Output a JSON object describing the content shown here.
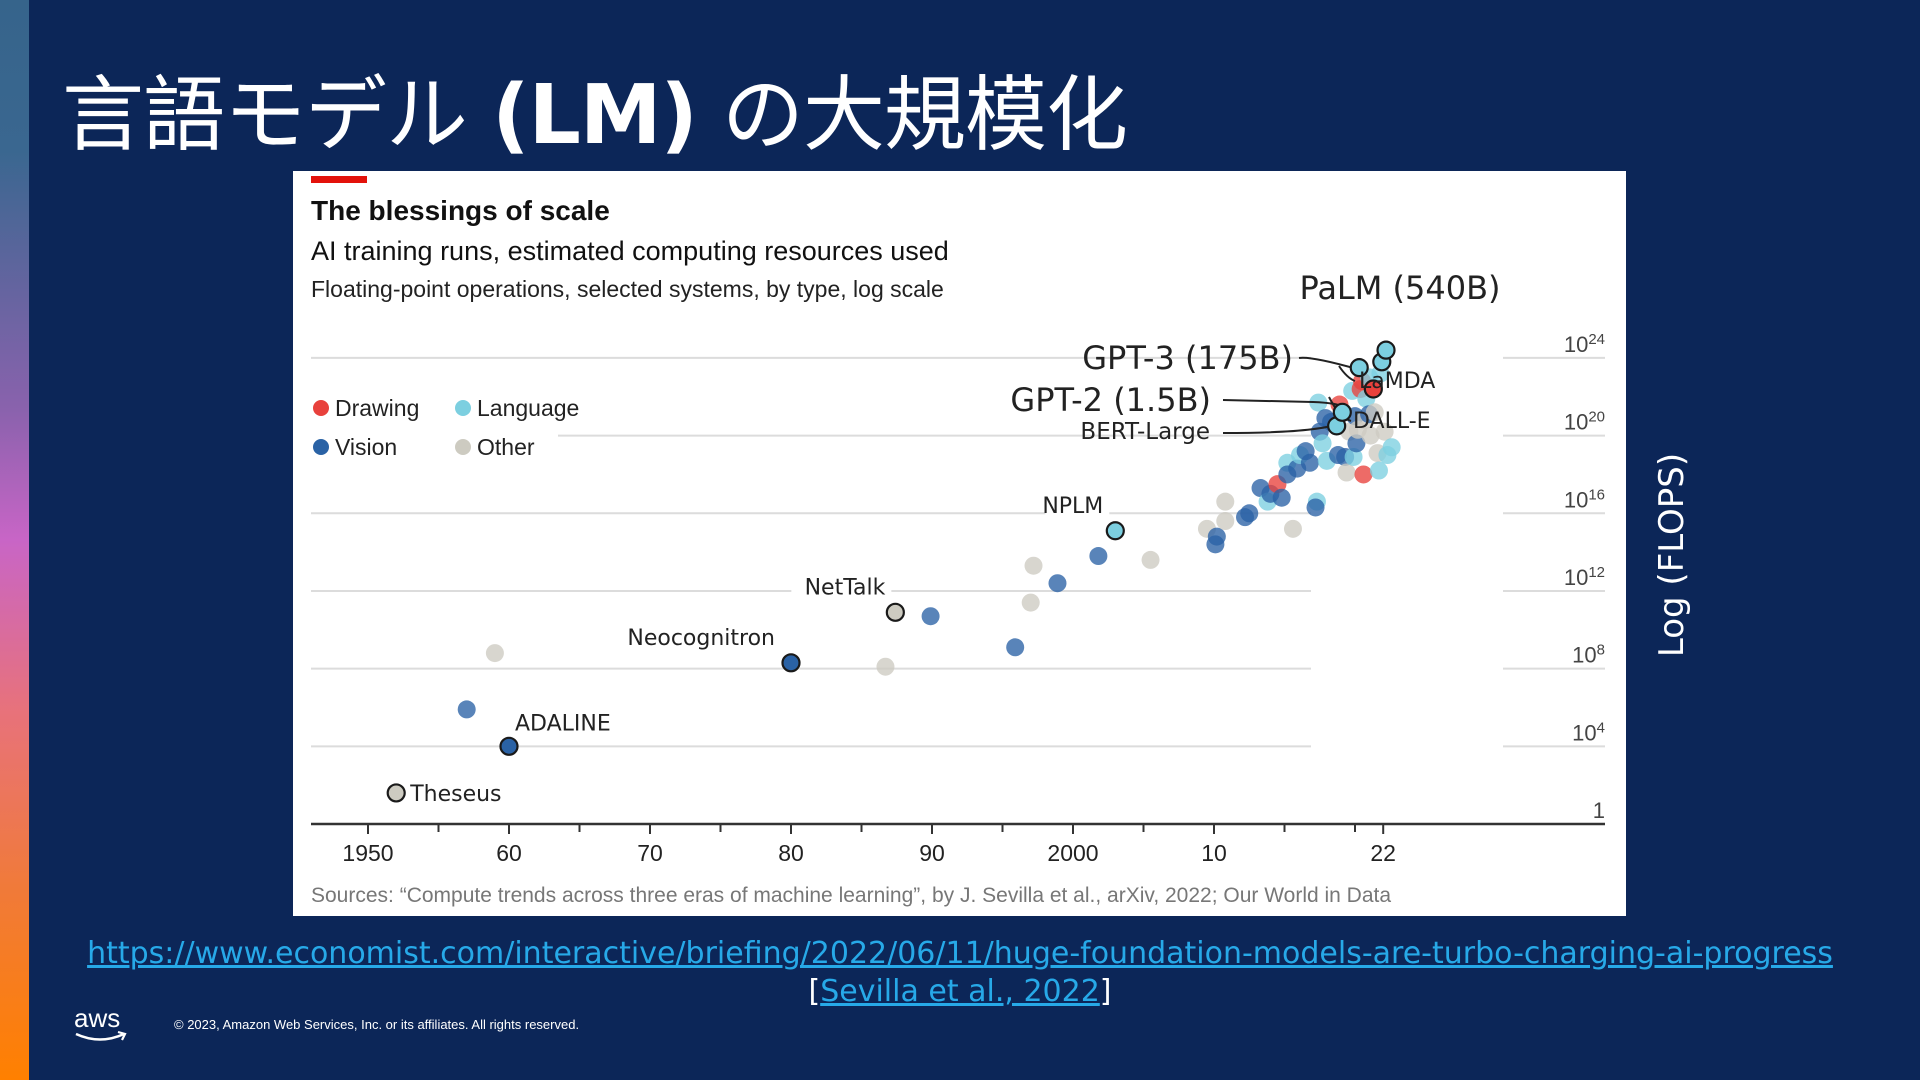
{
  "slide": {
    "title_prefix": "言語モデル",
    "title_bold": "(LM)",
    "title_suffix": "の大規模化",
    "y_axis_side_label": "Log (FLOPS)",
    "link_url_text": "https://www.economist.com/interactive/briefing/2022/06/11/huge-foundation-models-are-turbo-charging-ai-progress",
    "citation_open": "[",
    "citation_text": "Sevilla et al., 2022",
    "citation_close": "]",
    "copyright": "© 2023, Amazon Web Services, Inc. or its affiliates. All rights reserved.",
    "logo": "aws-logo",
    "colors": {
      "background": "#0c2658",
      "link": "#27a9e8",
      "accent_top": "#36648b",
      "accent_mid": "#c865c6",
      "accent_bottom": "#ff8000"
    }
  },
  "chart_data": {
    "type": "scatter",
    "title": "The blessings of scale",
    "subtitle": "AI training runs, estimated computing resources used",
    "description": "Floating-point operations, selected systems, by type, log scale",
    "source": "Sources: “Compute trends across three eras of machine learning”, by J. Sevilla et al., arXiv, 2022; Our World in Data",
    "xlabel": "",
    "ylabel": "Log (FLOPS)",
    "x_range": [
      1947,
      2035
    ],
    "y_range_log10": [
      0,
      25
    ],
    "x_ticks": [
      {
        "value": 1950,
        "label": "1950"
      },
      {
        "value": 1960,
        "label": "60"
      },
      {
        "value": 1970,
        "label": "70"
      },
      {
        "value": 1980,
        "label": "80"
      },
      {
        "value": 1990,
        "label": "90"
      },
      {
        "value": 2000,
        "label": "2000"
      },
      {
        "value": 2010,
        "label": "10"
      },
      {
        "value": 2022,
        "label": "22"
      }
    ],
    "x_minor_ticks": [
      1955,
      1965,
      1975,
      1985,
      1995,
      2005,
      2015,
      2020
    ],
    "y_ticks": [
      {
        "value": 0,
        "base": "1",
        "exp": ""
      },
      {
        "value": 4,
        "base": "10",
        "exp": "4"
      },
      {
        "value": 8,
        "base": "10",
        "exp": "8"
      },
      {
        "value": 12,
        "base": "10",
        "exp": "12"
      },
      {
        "value": 16,
        "base": "10",
        "exp": "16"
      },
      {
        "value": 20,
        "base": "10",
        "exp": "20"
      },
      {
        "value": 24,
        "base": "10",
        "exp": "24"
      }
    ],
    "grid": true,
    "legend_position": "top-left",
    "series": [
      {
        "name": "Drawing",
        "color": "#e8413c"
      },
      {
        "name": "Language",
        "color": "#7ccfe0"
      },
      {
        "name": "Vision",
        "color": "#2a62a5"
      },
      {
        "name": "Other",
        "color": "#cdcbc1"
      }
    ],
    "points": [
      {
        "year": 1952.0,
        "log10_flops": 1.6,
        "type": "Other",
        "label": "Theseus",
        "highlight": true
      },
      {
        "year": 1957.0,
        "log10_flops": 5.9,
        "type": "Vision"
      },
      {
        "year": 1959.0,
        "log10_flops": 8.8,
        "type": "Other"
      },
      {
        "year": 1960.0,
        "log10_flops": 4.0,
        "type": "Vision",
        "label": "ADALINE",
        "highlight": true
      },
      {
        "year": 1980.0,
        "log10_flops": 8.3,
        "type": "Vision",
        "label": "Neocognitron",
        "highlight": true
      },
      {
        "year": 1986.7,
        "log10_flops": 8.1,
        "type": "Other"
      },
      {
        "year": 1987.4,
        "log10_flops": 10.9,
        "type": "Other",
        "label": "NetTalk",
        "highlight": true
      },
      {
        "year": 1989.9,
        "log10_flops": 10.7,
        "type": "Vision"
      },
      {
        "year": 1995.9,
        "log10_flops": 9.1,
        "type": "Vision"
      },
      {
        "year": 1997.0,
        "log10_flops": 11.4,
        "type": "Other"
      },
      {
        "year": 1997.2,
        "log10_flops": 13.3,
        "type": "Other"
      },
      {
        "year": 1998.9,
        "log10_flops": 12.4,
        "type": "Vision"
      },
      {
        "year": 2001.8,
        "log10_flops": 13.8,
        "type": "Vision"
      },
      {
        "year": 2003.0,
        "log10_flops": 15.1,
        "type": "Language",
        "label": "NPLM",
        "highlight": true
      },
      {
        "year": 2005.5,
        "log10_flops": 13.6,
        "type": "Other"
      },
      {
        "year": 2009.5,
        "log10_flops": 15.2,
        "type": "Other"
      },
      {
        "year": 2010.1,
        "log10_flops": 14.4,
        "type": "Vision"
      },
      {
        "year": 2010.2,
        "log10_flops": 14.8,
        "type": "Vision"
      },
      {
        "year": 2010.8,
        "log10_flops": 15.6,
        "type": "Other"
      },
      {
        "year": 2010.8,
        "log10_flops": 16.6,
        "type": "Other"
      },
      {
        "year": 2012.2,
        "log10_flops": 15.8,
        "type": "Vision"
      },
      {
        "year": 2012.5,
        "log10_flops": 16.0,
        "type": "Vision"
      },
      {
        "year": 2013.3,
        "log10_flops": 17.3,
        "type": "Vision"
      },
      {
        "year": 2013.8,
        "log10_flops": 16.6,
        "type": "Language"
      },
      {
        "year": 2014.0,
        "log10_flops": 17.0,
        "type": "Vision"
      },
      {
        "year": 2014.5,
        "log10_flops": 17.5,
        "type": "Drawing"
      },
      {
        "year": 2014.8,
        "log10_flops": 16.8,
        "type": "Vision"
      },
      {
        "year": 2015.6,
        "log10_flops": 15.2,
        "type": "Other"
      },
      {
        "year": 2015.2,
        "log10_flops": 18.6,
        "type": "Language"
      },
      {
        "year": 2015.2,
        "log10_flops": 18.0,
        "type": "Vision"
      },
      {
        "year": 2015.9,
        "log10_flops": 18.3,
        "type": "Vision"
      },
      {
        "year": 2016.1,
        "log10_flops": 19.0,
        "type": "Language"
      },
      {
        "year": 2016.5,
        "log10_flops": 19.2,
        "type": "Vision"
      },
      {
        "year": 2016.8,
        "log10_flops": 18.6,
        "type": "Vision"
      },
      {
        "year": 2017.3,
        "log10_flops": 16.6,
        "type": "Language"
      },
      {
        "year": 2017.2,
        "log10_flops": 16.3,
        "type": "Vision"
      },
      {
        "year": 2017.4,
        "log10_flops": 21.7,
        "type": "Language"
      },
      {
        "year": 2017.5,
        "log10_flops": 20.2,
        "type": "Vision"
      },
      {
        "year": 2017.7,
        "log10_flops": 19.6,
        "type": "Language"
      },
      {
        "year": 2017.9,
        "log10_flops": 20.9,
        "type": "Vision"
      },
      {
        "year": 2018.0,
        "log10_flops": 18.7,
        "type": "Language"
      },
      {
        "year": 2018.3,
        "log10_flops": 20.7,
        "type": "Vision"
      },
      {
        "year": 2018.7,
        "log10_flops": 20.5,
        "type": "Language",
        "label": "BERT-Large",
        "highlight": true
      },
      {
        "year": 2018.8,
        "log10_flops": 19.0,
        "type": "Vision"
      },
      {
        "year": 2018.9,
        "log10_flops": 21.6,
        "type": "Drawing"
      },
      {
        "year": 2019.1,
        "log10_flops": 21.2,
        "type": "Language",
        "label": "GPT-2 (1.5B)",
        "highlight": true
      },
      {
        "year": 2019.3,
        "log10_flops": 18.9,
        "type": "Vision"
      },
      {
        "year": 2019.4,
        "log10_flops": 18.1,
        "type": "Other"
      },
      {
        "year": 2019.6,
        "log10_flops": 20.2,
        "type": "Other"
      },
      {
        "year": 2019.8,
        "log10_flops": 22.3,
        "type": "Language"
      },
      {
        "year": 2019.9,
        "log10_flops": 18.9,
        "type": "Language"
      },
      {
        "year": 2020.0,
        "log10_flops": 21.0,
        "type": "Vision"
      },
      {
        "year": 2020.1,
        "log10_flops": 19.6,
        "type": "Vision"
      },
      {
        "year": 2020.2,
        "log10_flops": 20.3,
        "type": "Other"
      },
      {
        "year": 2020.3,
        "log10_flops": 23.5,
        "type": "Language",
        "label": "GPT-3 (175B)",
        "highlight": true
      },
      {
        "year": 2020.4,
        "log10_flops": 22.4,
        "type": "Drawing"
      },
      {
        "year": 2020.5,
        "log10_flops": 22.8,
        "type": "Drawing"
      },
      {
        "year": 2020.6,
        "log10_flops": 18.0,
        "type": "Drawing"
      },
      {
        "year": 2020.7,
        "log10_flops": 20.8,
        "type": "Other"
      },
      {
        "year": 2020.8,
        "log10_flops": 21.9,
        "type": "Language"
      },
      {
        "year": 2021.0,
        "log10_flops": 23.0,
        "type": "Language"
      },
      {
        "year": 2021.0,
        "log10_flops": 21.1,
        "type": "Vision"
      },
      {
        "year": 2021.1,
        "log10_flops": 20.0,
        "type": "Other"
      },
      {
        "year": 2021.3,
        "log10_flops": 22.4,
        "type": "Drawing",
        "label": "DALL-E",
        "highlight": true
      },
      {
        "year": 2021.4,
        "log10_flops": 21.2,
        "type": "Other"
      },
      {
        "year": 2021.6,
        "log10_flops": 19.1,
        "type": "Other"
      },
      {
        "year": 2021.7,
        "log10_flops": 18.2,
        "type": "Language"
      },
      {
        "year": 2021.8,
        "log10_flops": 23.2,
        "type": "Language"
      },
      {
        "year": 2021.9,
        "log10_flops": 23.8,
        "type": "Language",
        "label": "LaMDA",
        "highlight": true
      },
      {
        "year": 2022.1,
        "log10_flops": 20.2,
        "type": "Other"
      },
      {
        "year": 2022.2,
        "log10_flops": 24.4,
        "type": "Language",
        "label": "PaLM (540B)",
        "highlight": true
      },
      {
        "year": 2022.3,
        "log10_flops": 19.0,
        "type": "Language"
      },
      {
        "year": 2022.6,
        "log10_flops": 19.4,
        "type": "Language"
      }
    ]
  }
}
